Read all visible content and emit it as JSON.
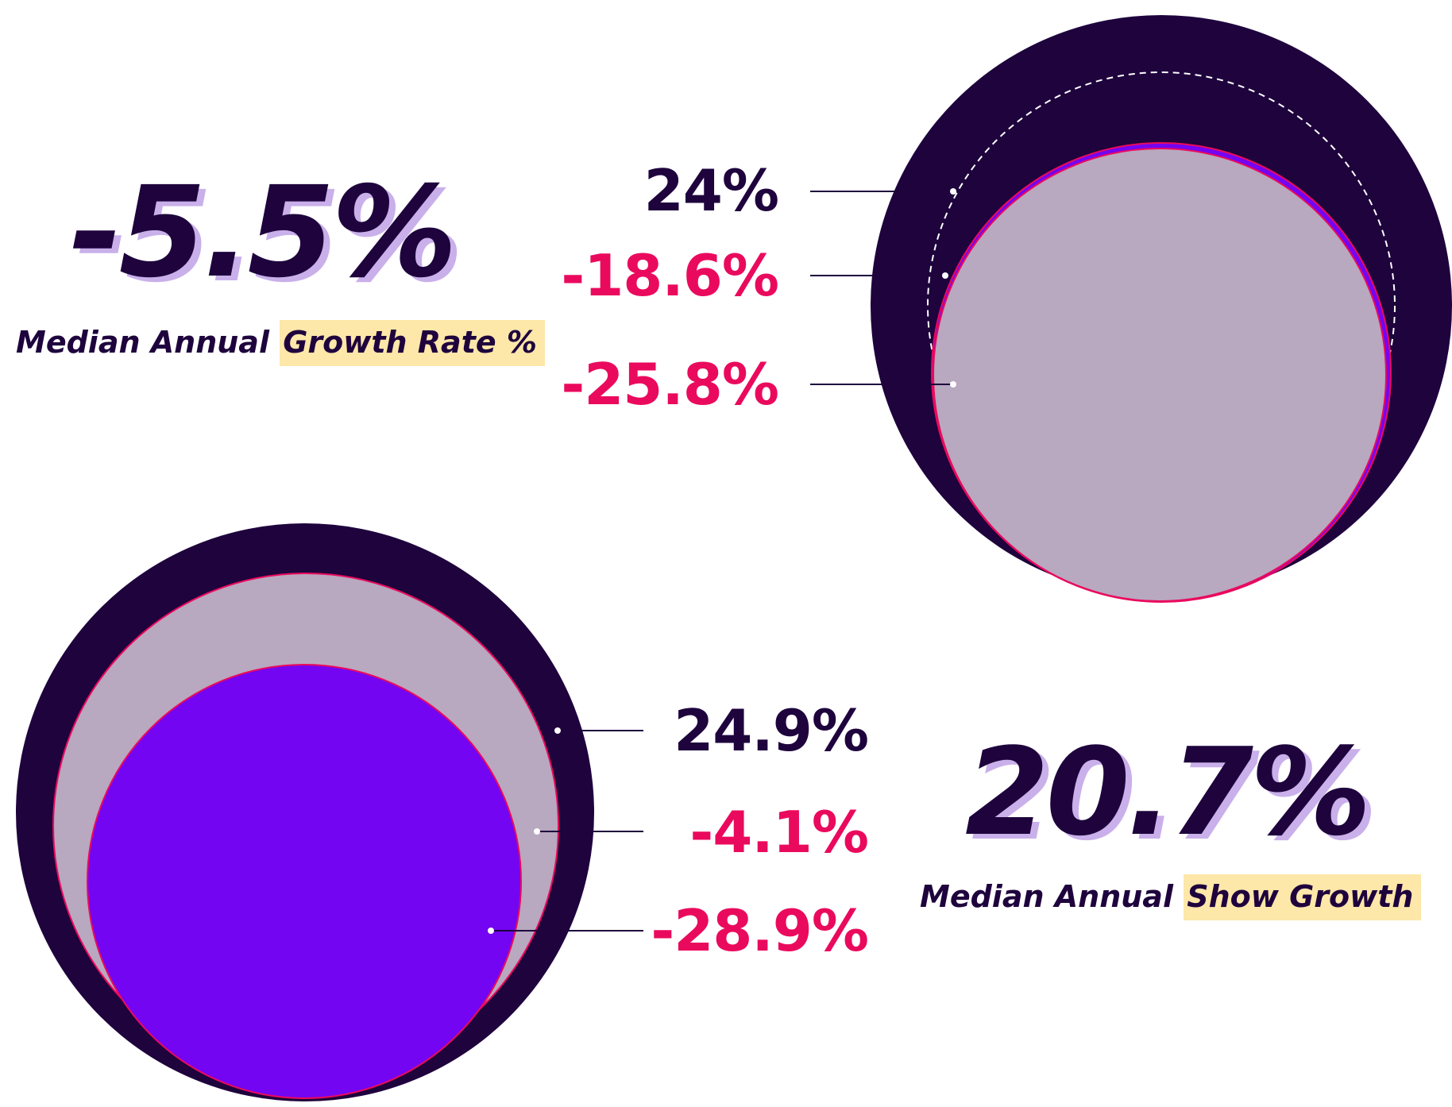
{
  "colors": {
    "dark": "#1e033d",
    "violet": "#7305f2",
    "lilac": "#b8a8c0",
    "pink": "#ea0a5d",
    "highlight": "#fde7a9",
    "shadow": "#c9b0ea"
  },
  "top": {
    "headline": "-5.5%",
    "caption_plain": "Median Annual ",
    "caption_highlight": "Growth Rate %"
  },
  "bottom": {
    "headline": "20.7%",
    "caption_plain": "Median Annual ",
    "caption_highlight": "Show Growth"
  },
  "chart_data": [
    {
      "type": "nested-circles",
      "values": [
        {
          "label": "24%",
          "value": 24,
          "fill": "#1e033d"
        },
        {
          "label": "-18.6%",
          "value": -18.6,
          "fill": "#7305f2"
        },
        {
          "label": "-25.8%",
          "value": -25.8,
          "fill": "#b8a8c0"
        }
      ]
    },
    {
      "type": "nested-circles",
      "values": [
        {
          "label": "24.9%",
          "value": 24.9,
          "fill": "#1e033d"
        },
        {
          "label": "-4.1%",
          "value": -4.1,
          "fill": "#b8a8c0"
        },
        {
          "label": "-28.9%",
          "value": -28.9,
          "fill": "#7305f2"
        }
      ]
    }
  ]
}
